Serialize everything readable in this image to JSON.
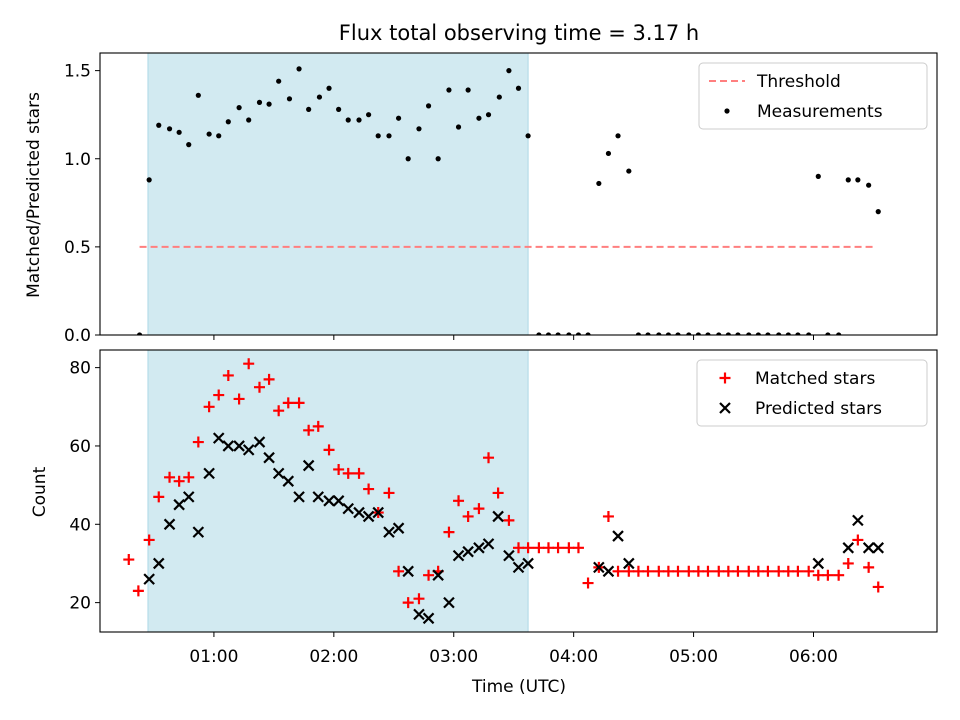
{
  "figure": {
    "title": "Flux total observing time = 3.17 h",
    "xlabel": "Time (UTC)",
    "xticks": [
      "01:00",
      "02:00",
      "03:00",
      "04:00",
      "05:00",
      "06:00"
    ],
    "xtick_hours": [
      1,
      2,
      3,
      4,
      5,
      6
    ],
    "xlim": [
      0.05,
      7.03
    ],
    "shaded_interval": [
      0.45,
      3.62
    ],
    "shade_color": "#add8e6",
    "time_unit": "hours UTC"
  },
  "chart_data": [
    {
      "type": "scatter",
      "title": "Flux total observing time = 3.17 h",
      "xlabel": "",
      "ylabel": "Matched/Predicted stars",
      "ylim": [
        0,
        1.6
      ],
      "yticks": [
        "0.0",
        "0.5",
        "1.0",
        "1.5"
      ],
      "ytick_values": [
        0,
        0.5,
        1.0,
        1.5
      ],
      "legend_position": "top-right",
      "series": [
        {
          "name": "Threshold",
          "kind": "dashed-line",
          "color": "#ff7f7f",
          "x": [
            0.38,
            6.52
          ],
          "y": [
            0.5,
            0.5
          ]
        },
        {
          "name": "Measurements",
          "kind": "dot",
          "color": "#000000",
          "x": [
            0.38,
            0.46,
            0.54,
            0.63,
            0.71,
            0.79,
            0.87,
            0.96,
            1.04,
            1.12,
            1.21,
            1.29,
            1.38,
            1.46,
            1.54,
            1.63,
            1.71,
            1.79,
            1.88,
            1.96,
            2.04,
            2.12,
            2.21,
            2.29,
            2.37,
            2.46,
            2.54,
            2.62,
            2.71,
            2.79,
            2.87,
            2.96,
            3.04,
            3.12,
            3.21,
            3.29,
            3.38,
            3.46,
            3.54,
            3.62,
            3.71,
            3.79,
            3.87,
            3.96,
            4.04,
            4.12,
            4.21,
            4.29,
            4.37,
            4.46,
            4.54,
            4.62,
            4.71,
            4.79,
            4.87,
            4.96,
            5.04,
            5.12,
            5.21,
            5.29,
            5.37,
            5.46,
            5.54,
            5.62,
            5.71,
            5.79,
            5.87,
            5.96,
            6.04,
            6.12,
            6.21,
            6.29,
            6.37,
            6.46,
            6.54
          ],
          "y": [
            0.0,
            0.88,
            1.19,
            1.17,
            1.15,
            1.08,
            1.36,
            1.14,
            1.13,
            1.21,
            1.29,
            1.22,
            1.32,
            1.31,
            1.44,
            1.34,
            1.51,
            1.28,
            1.35,
            1.4,
            1.28,
            1.22,
            1.22,
            1.25,
            1.13,
            1.13,
            1.23,
            1.0,
            1.17,
            1.3,
            1.0,
            1.39,
            1.18,
            1.39,
            1.23,
            1.25,
            1.35,
            1.5,
            1.4,
            1.13,
            0.0,
            0.0,
            0.0,
            0.0,
            0.0,
            0.0,
            0.86,
            1.03,
            1.13,
            0.93,
            0.0,
            0.0,
            0.0,
            0.0,
            0.0,
            0.0,
            0.0,
            0.0,
            0.0,
            0.0,
            0.0,
            0.0,
            0.0,
            0.0,
            0.0,
            0.0,
            0.0,
            0.0,
            0.9,
            0.0,
            0.0,
            0.88,
            0.88,
            0.85,
            0.7
          ]
        }
      ]
    },
    {
      "type": "scatter",
      "xlabel": "Time (UTC)",
      "ylabel": "Count",
      "ylim": [
        12.5,
        84.5
      ],
      "yticks": [
        "20",
        "40",
        "60",
        "80"
      ],
      "ytick_values": [
        20,
        40,
        60,
        80
      ],
      "legend_position": "top-right",
      "series": [
        {
          "name": "Matched stars",
          "kind": "plus",
          "color": "#ff0000",
          "x": [
            0.29,
            0.37,
            0.46,
            0.54,
            0.63,
            0.71,
            0.79,
            0.87,
            0.96,
            1.04,
            1.12,
            1.21,
            1.29,
            1.38,
            1.46,
            1.54,
            1.62,
            1.71,
            1.79,
            1.87,
            1.96,
            2.04,
            2.12,
            2.21,
            2.29,
            2.37,
            2.46,
            2.54,
            2.62,
            2.71,
            2.79,
            2.87,
            2.96,
            3.04,
            3.12,
            3.21,
            3.29,
            3.37,
            3.46,
            3.54,
            3.62,
            3.71,
            3.79,
            3.87,
            3.96,
            4.04,
            4.12,
            4.21,
            4.29,
            4.37,
            4.46,
            4.54,
            4.62,
            4.71,
            4.79,
            4.87,
            4.96,
            5.04,
            5.12,
            5.21,
            5.29,
            5.37,
            5.46,
            5.54,
            5.62,
            5.71,
            5.79,
            5.87,
            5.96,
            6.04,
            6.12,
            6.21,
            6.29,
            6.37,
            6.46,
            6.54
          ],
          "y": [
            31,
            23,
            36,
            47,
            52,
            51,
            52,
            61,
            70,
            73,
            78,
            72,
            81,
            75,
            77,
            69,
            71,
            71,
            64,
            65,
            59,
            54,
            53,
            53,
            49,
            43,
            48,
            28,
            20,
            21,
            27,
            28,
            38,
            46,
            42,
            44,
            57,
            48,
            41,
            34,
            34,
            34,
            34,
            34,
            34,
            34,
            25,
            29,
            42,
            28,
            28,
            28,
            28,
            28,
            28,
            28,
            28,
            28,
            28,
            28,
            28,
            28,
            28,
            28,
            28,
            28,
            28,
            28,
            28,
            27,
            27,
            27,
            30,
            36,
            29,
            24
          ]
        },
        {
          "name": "Predicted stars",
          "kind": "cross",
          "color": "#000000",
          "x": [
            0.46,
            0.54,
            0.63,
            0.71,
            0.79,
            0.87,
            0.96,
            1.04,
            1.12,
            1.21,
            1.29,
            1.38,
            1.46,
            1.54,
            1.62,
            1.71,
            1.79,
            1.87,
            1.96,
            2.04,
            2.12,
            2.21,
            2.29,
            2.37,
            2.46,
            2.54,
            2.62,
            2.71,
            2.79,
            2.87,
            2.96,
            3.04,
            3.12,
            3.21,
            3.29,
            3.37,
            3.46,
            3.54,
            3.62,
            4.21,
            4.29,
            4.37,
            4.46,
            6.04,
            6.29,
            6.37,
            6.46,
            6.54
          ],
          "y": [
            26,
            30,
            40,
            45,
            47,
            38,
            53,
            62,
            60,
            60,
            59,
            61,
            57,
            53,
            51,
            47,
            55,
            47,
            46,
            46,
            44,
            43,
            42,
            43,
            38,
            39,
            28,
            17,
            16,
            27,
            20,
            32,
            33,
            34,
            35,
            42,
            32,
            29,
            30,
            29,
            28,
            37,
            30,
            30,
            34,
            41,
            34,
            34
          ]
        }
      ]
    }
  ]
}
